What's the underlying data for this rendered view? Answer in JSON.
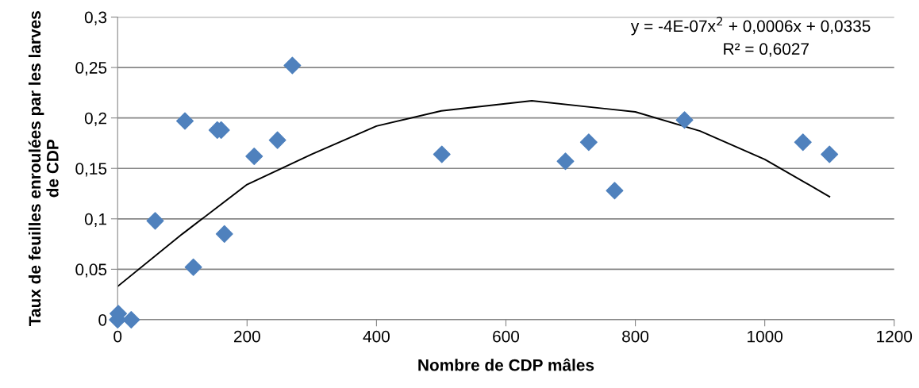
{
  "chart_data": {
    "type": "scatter",
    "xlabel": "Nombre de CDP mâles",
    "ylabel": "Taux de feuilles enroulées par les larves de CDP",
    "xlim": [
      0,
      1200
    ],
    "xticks": [
      0,
      200,
      400,
      600,
      800,
      1000,
      1200
    ],
    "ylim": [
      0,
      0.3
    ],
    "yticks": [
      {
        "value": 0,
        "label": "0"
      },
      {
        "value": 0.05,
        "label": "0,05"
      },
      {
        "value": 0.1,
        "label": "0,1"
      },
      {
        "value": 0.15,
        "label": "0,15"
      },
      {
        "value": 0.2,
        "label": "0,2"
      },
      {
        "value": 0.25,
        "label": "0,25"
      },
      {
        "value": 0.3,
        "label": "0,3"
      }
    ],
    "grid": "y",
    "series": [
      {
        "color": "#4f81bd",
        "marker": "diamond",
        "x": [
          0,
          1,
          21,
          58,
          104,
          117,
          154,
          160,
          165,
          211,
          247,
          270,
          501,
          692,
          728,
          768,
          876,
          1059,
          1100
        ],
        "values": [
          0,
          0.006,
          0,
          0.098,
          0.197,
          0.052,
          0.188,
          0.188,
          0.085,
          0.162,
          0.178,
          0.252,
          0.164,
          0.157,
          0.176,
          0.128,
          0.198,
          0.176,
          0.164
        ]
      },
      {
        "type": "line",
        "marker": "none",
        "color": "#000000",
        "x": [
          0,
          100,
          200,
          300,
          400,
          500,
          640,
          800,
          900,
          1000,
          1100
        ],
        "values": [
          0.033,
          0.085,
          0.134,
          0.164,
          0.192,
          0.207,
          0.217,
          0.206,
          0.187,
          0.159,
          0.122
        ]
      }
    ],
    "annotations": [
      "y = -4E-07x$^{2}$ + 0,0006x + 0,0335",
      "R² = 0,6027"
    ]
  }
}
